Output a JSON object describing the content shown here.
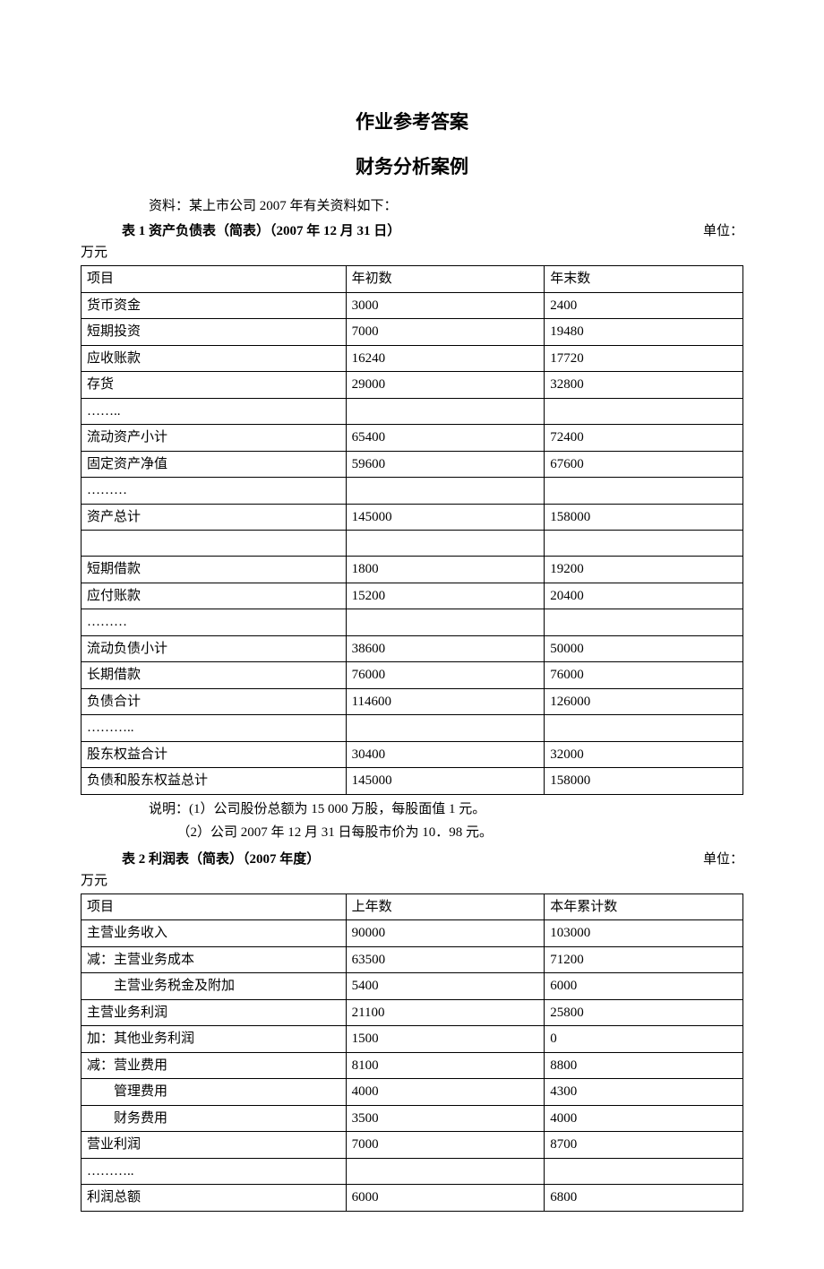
{
  "page_title": "作业参考答案",
  "page_subtitle": "财务分析案例",
  "intro_text": "资料：某上市公司 2007 年有关资料如下：",
  "table1": {
    "caption": "表 1 资产负债表（简表）（2007 年 12 月 31 日）",
    "unit_label": "单位：",
    "unit_line2": "万元",
    "columns": [
      "项目",
      "年初数",
      "年末数"
    ],
    "col_widths": [
      "40%",
      "30%",
      "30%"
    ],
    "rows": [
      [
        "货币资金",
        "3000",
        "2400"
      ],
      [
        "短期投资",
        "7000",
        "19480"
      ],
      [
        "应收账款",
        "16240",
        "17720"
      ],
      [
        "存货",
        "29000",
        "32800"
      ],
      [
        "……..",
        "",
        ""
      ],
      [
        "流动资产小计",
        "65400",
        "72400"
      ],
      [
        "固定资产净值",
        "59600",
        "67600"
      ],
      [
        "………",
        "",
        ""
      ],
      [
        "资产总计",
        "145000",
        "158000"
      ],
      [
        "",
        "",
        ""
      ],
      [
        "短期借款",
        "1800",
        "19200"
      ],
      [
        "应付账款",
        "15200",
        "20400"
      ],
      [
        "………",
        "",
        ""
      ],
      [
        "流动负债小计",
        "38600",
        "50000"
      ],
      [
        "长期借款",
        "76000",
        "76000"
      ],
      [
        "负债合计",
        "114600",
        "126000"
      ],
      [
        "………..",
        "",
        ""
      ],
      [
        "股东权益合计",
        "30400",
        "32000"
      ],
      [
        "负债和股东权益总计",
        "145000",
        "158000"
      ]
    ]
  },
  "note1": "说明：(1）公司股份总额为 15 000 万股，每股面值 1 元。",
  "note2": "（2）公司 2007 年 12 月 31 日每股市价为 10．98 元。",
  "table2": {
    "caption": "表 2 利润表（简表）（2007 年度）",
    "unit_label": "单位：",
    "unit_line2": "万元",
    "columns": [
      "项目",
      "上年数",
      "本年累计数"
    ],
    "col_widths": [
      "40%",
      "30%",
      "30%"
    ],
    "rows": [
      [
        "主营业务收入",
        "90000",
        "103000"
      ],
      [
        "减：主营业务成本",
        "63500",
        "71200"
      ],
      [
        "    主营业务税金及附加",
        "5400",
        "6000"
      ],
      [
        "主营业务利润",
        "21100",
        "25800"
      ],
      [
        "加：其他业务利润",
        "1500",
        "0"
      ],
      [
        "减：营业费用",
        "8100",
        "8800"
      ],
      [
        "    管理费用",
        "4000",
        "4300"
      ],
      [
        "    财务费用",
        "3500",
        "4000"
      ],
      [
        "营业利润",
        "7000",
        "8700"
      ],
      [
        "………..",
        "",
        ""
      ],
      [
        "利润总额",
        "6000",
        "6800"
      ]
    ],
    "indent_rows": [
      2,
      6,
      7
    ]
  },
  "colors": {
    "text": "#000000",
    "background": "#ffffff",
    "border": "#000000"
  }
}
